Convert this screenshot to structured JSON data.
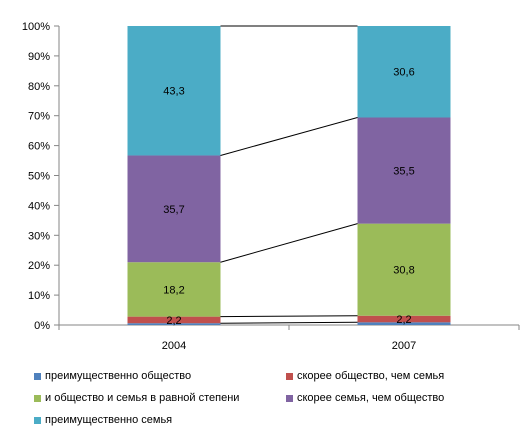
{
  "chart_data": {
    "type": "bar",
    "stacked": "percent",
    "categories": [
      "2004",
      "2007"
    ],
    "series": [
      {
        "name": "преимущественно общество",
        "values": [
          0.6,
          0.9
        ],
        "color": "#4F81BD",
        "labels": [
          "",
          ""
        ]
      },
      {
        "name": "скорее общество, чем семья",
        "values": [
          2.2,
          2.2
        ],
        "color": "#C0504D",
        "labels": [
          "2,2",
          "2,2"
        ]
      },
      {
        "name": "и общество и семья в равной степени",
        "values": [
          18.2,
          30.8
        ],
        "color": "#9BBB59",
        "labels": [
          "18,2",
          "30,8"
        ]
      },
      {
        "name": "скорее семья, чем общество",
        "values": [
          35.7,
          35.5
        ],
        "color": "#8064A2",
        "labels": [
          "35,7",
          "35,5"
        ]
      },
      {
        "name": "преимущественно семья",
        "values": [
          43.3,
          30.6
        ],
        "color": "#4BACC6",
        "labels": [
          "43,3",
          "30,6"
        ]
      }
    ],
    "yticks": [
      "0%",
      "10%",
      "20%",
      "30%",
      "40%",
      "50%",
      "60%",
      "70%",
      "80%",
      "90%",
      "100%"
    ],
    "ylim": [
      0,
      100
    ],
    "series_lines": true,
    "grid": false,
    "legend_position": "bottom"
  }
}
